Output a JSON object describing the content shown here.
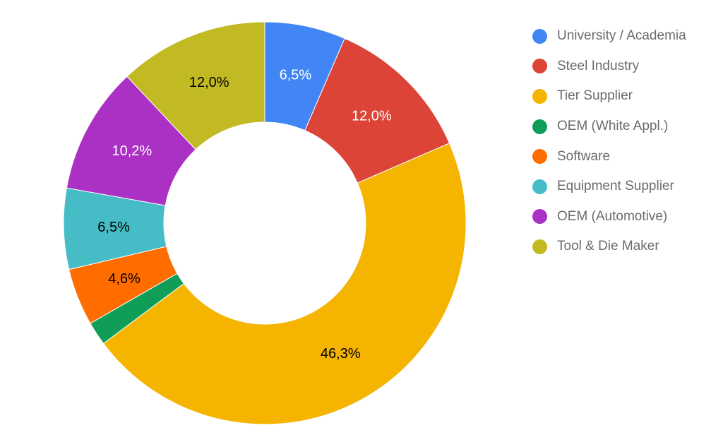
{
  "chart_data": {
    "type": "pie",
    "donut": true,
    "title": "",
    "legend_position": "right",
    "categories": [
      "University / Academia",
      "Steel Industry",
      "Tier Supplier",
      "OEM (White Appl.)",
      "Software",
      "Equipment Supplier",
      "OEM (Automotive)",
      "Tool & Die Maker"
    ],
    "values": [
      6.5,
      12.0,
      46.3,
      1.9,
      4.6,
      6.5,
      10.2,
      12.0
    ],
    "data_labels": [
      "6,5%",
      "12,0%",
      "46,3%",
      "",
      "4,6%",
      "6,5%",
      "10,2%",
      "12,0%"
    ],
    "colors": [
      "#4285F4",
      "#DB4437",
      "#F4B400",
      "#0F9D58",
      "#FF6D00",
      "#46BDC6",
      "#AB30C4",
      "#C2BA22"
    ],
    "label_colors": [
      "#ffffff",
      "#ffffff",
      "#000000",
      "#ffffff",
      "#000000",
      "#000000",
      "#ffffff",
      "#000000"
    ]
  }
}
